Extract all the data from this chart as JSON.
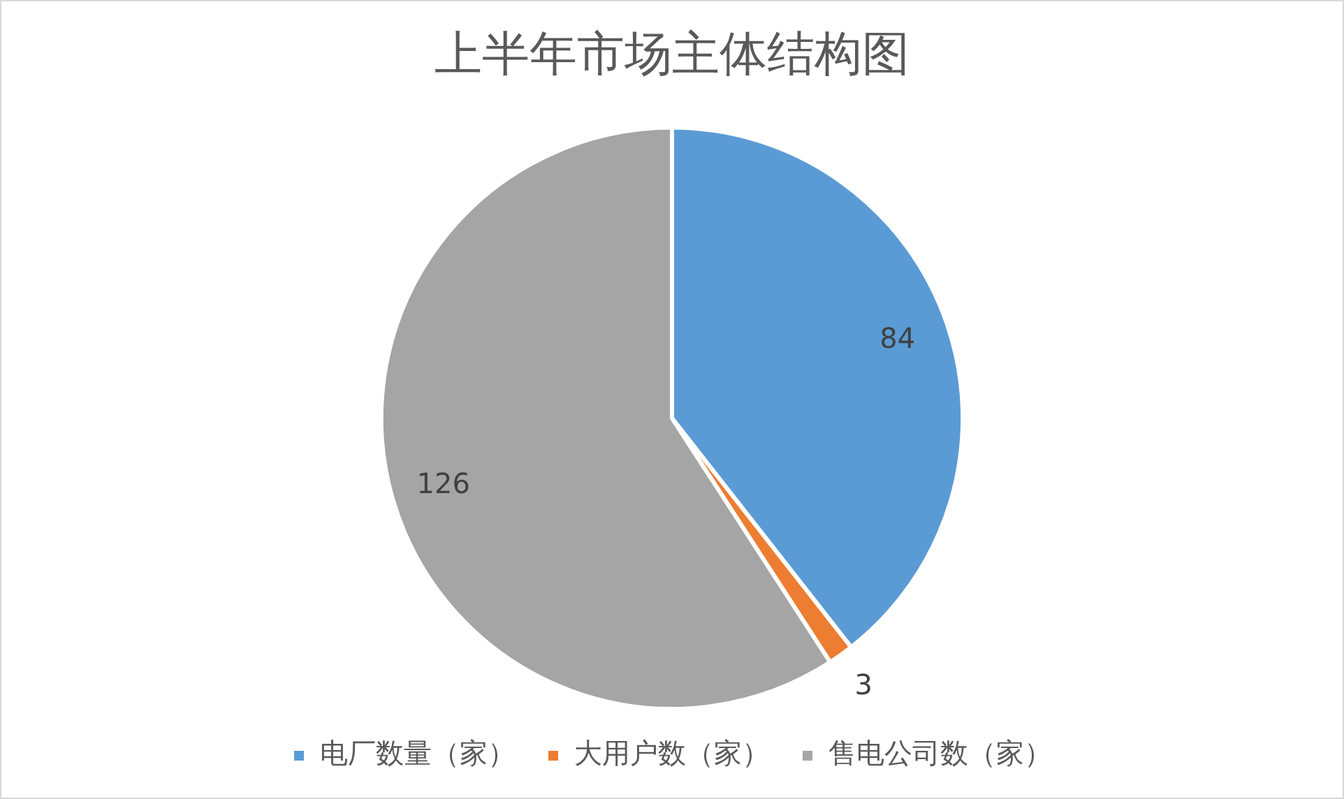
{
  "chart_data": {
    "type": "pie",
    "title": "上半年市场主体结构图",
    "categories": [
      "电厂数量（家）",
      "大用户数（家）",
      "售电公司数（家）"
    ],
    "values": [
      84,
      3,
      126
    ],
    "colors": [
      "#5b9bd5",
      "#ed7d31",
      "#a5a5a5"
    ],
    "data_labels": true,
    "legend": "bottom"
  }
}
